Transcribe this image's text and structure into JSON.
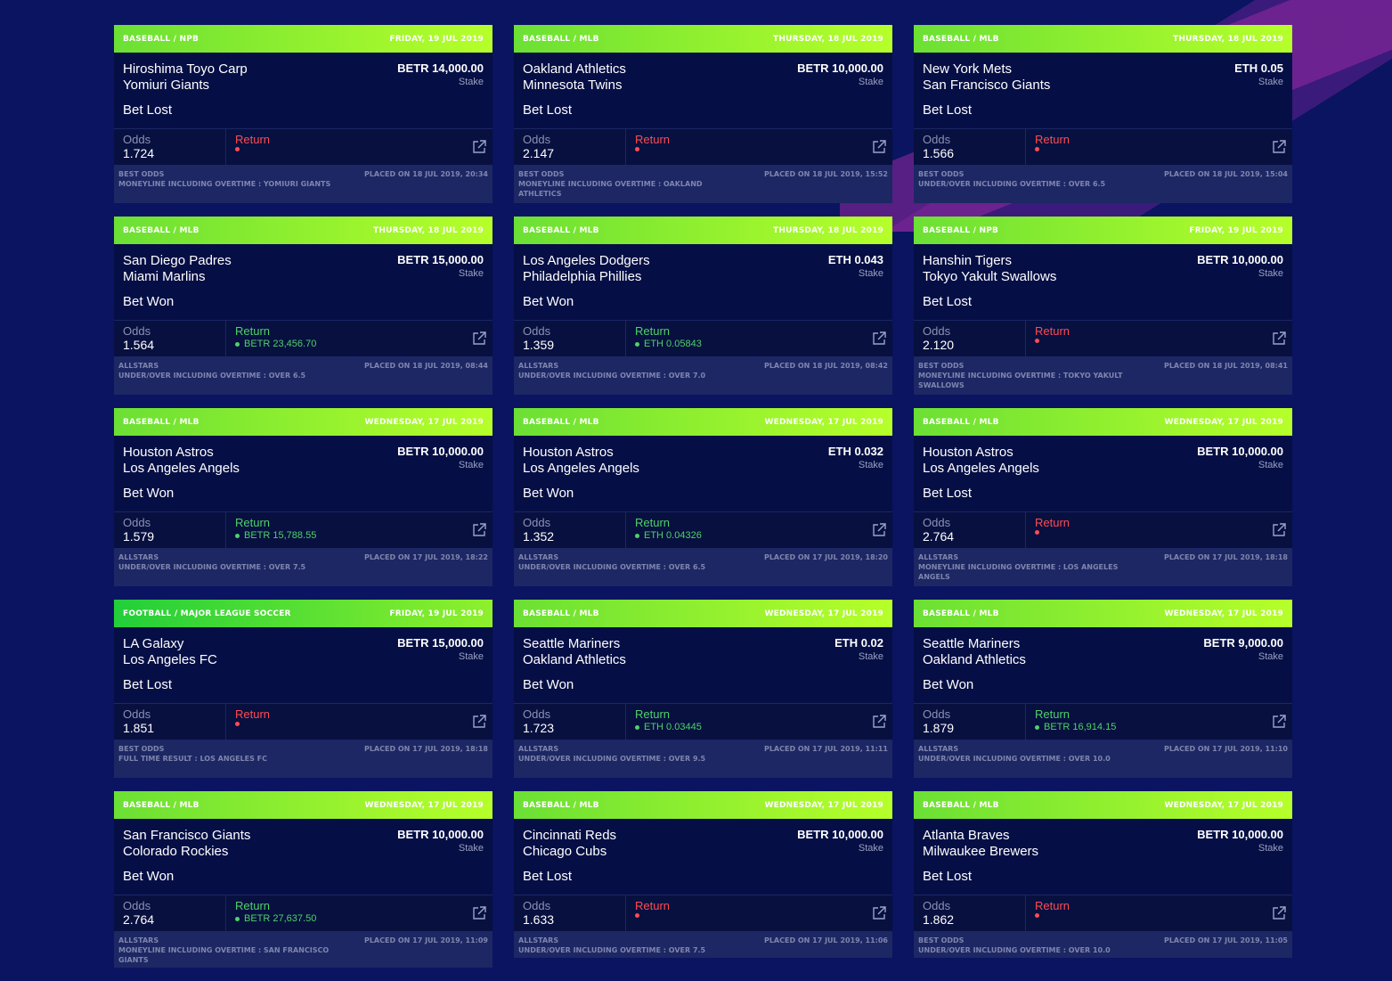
{
  "ui": {
    "odds_label": "Odds",
    "return_label": "Return",
    "stake_label": "Stake"
  },
  "bets": [
    {
      "category": "Baseball / NPB",
      "date": "Friday, 19 Jul 2019",
      "team1": "Hiroshima Toyo Carp",
      "team2": "Yomiuri Giants",
      "result": "Bet Lost",
      "status": "lost",
      "stake": "BETR 14,000.00",
      "odds": "1.724",
      "return_value": "",
      "pick_type": "Best Odds",
      "market": "Moneyline including overtime : Yomiuri Giants",
      "placed": "Placed on 18 Jul 2019, 20:34"
    },
    {
      "category": "Baseball / MLB",
      "date": "Thursday, 18 Jul 2019",
      "team1": "Oakland Athletics",
      "team2": "Minnesota Twins",
      "result": "Bet Lost",
      "status": "lost",
      "stake": "BETR 10,000.00",
      "odds": "2.147",
      "return_value": "",
      "pick_type": "Best Odds",
      "market": "Moneyline including overtime : Oakland Athletics",
      "placed": "Placed on 18 Jul 2019, 15:52"
    },
    {
      "category": "Baseball / MLB",
      "date": "Thursday, 18 Jul 2019",
      "team1": "New York Mets",
      "team2": "San Francisco Giants",
      "result": "Bet Lost",
      "status": "lost",
      "stake": "ETH 0.05",
      "odds": "1.566",
      "return_value": "",
      "pick_type": "Best Odds",
      "market": "Under/Over including overtime : Over 6.5",
      "placed": "Placed on 18 Jul 2019, 15:04"
    },
    {
      "category": "Baseball / MLB",
      "date": "Thursday, 18 Jul 2019",
      "team1": "San Diego Padres",
      "team2": "Miami Marlins",
      "result": "Bet Won",
      "status": "won",
      "stake": "BETR 15,000.00",
      "odds": "1.564",
      "return_value": "BETR 23,456.70",
      "pick_type": "Allstars",
      "market": "Under/Over including overtime : Over 6.5",
      "placed": "Placed on 18 Jul 2019, 08:44"
    },
    {
      "category": "Baseball / MLB",
      "date": "Thursday, 18 Jul 2019",
      "team1": "Los Angeles Dodgers",
      "team2": "Philadelphia Phillies",
      "result": "Bet Won",
      "status": "won",
      "stake": "ETH 0.043",
      "odds": "1.359",
      "return_value": "ETH 0.05843",
      "pick_type": "Allstars",
      "market": "Under/Over including overtime : Over 7.0",
      "placed": "Placed on 18 Jul 2019, 08:42"
    },
    {
      "category": "Baseball / NPB",
      "date": "Friday, 19 Jul 2019",
      "team1": "Hanshin Tigers",
      "team2": "Tokyo Yakult Swallows",
      "result": "Bet Lost",
      "status": "lost",
      "stake": "BETR 10,000.00",
      "odds": "2.120",
      "return_value": "",
      "pick_type": "Best Odds",
      "market": "Moneyline including overtime : Tokyo Yakult Swallows",
      "placed": "Placed on 18 Jul 2019, 08:41"
    },
    {
      "category": "Baseball / MLB",
      "date": "Wednesday, 17 Jul 2019",
      "team1": "Houston Astros",
      "team2": "Los Angeles Angels",
      "result": "Bet Won",
      "status": "won",
      "stake": "BETR 10,000.00",
      "odds": "1.579",
      "return_value": "BETR 15,788.55",
      "pick_type": "Allstars",
      "market": "Under/Over including overtime : Over 7.5",
      "placed": "Placed on 17 Jul 2019, 18:22"
    },
    {
      "category": "Baseball / MLB",
      "date": "Wednesday, 17 Jul 2019",
      "team1": "Houston Astros",
      "team2": "Los Angeles Angels",
      "result": "Bet Won",
      "status": "won",
      "stake": "ETH 0.032",
      "odds": "1.352",
      "return_value": "ETH 0.04326",
      "pick_type": "Allstars",
      "market": "Under/Over including overtime : Over 6.5",
      "placed": "Placed on 17 Jul 2019, 18:20"
    },
    {
      "category": "Baseball / MLB",
      "date": "Wednesday, 17 Jul 2019",
      "team1": "Houston Astros",
      "team2": "Los Angeles Angels",
      "result": "Bet Lost",
      "status": "lost",
      "stake": "BETR 10,000.00",
      "odds": "2.764",
      "return_value": "",
      "pick_type": "Allstars",
      "market": "Moneyline including overtime : Los Angeles Angels",
      "placed": "Placed on 17 Jul 2019, 18:18"
    },
    {
      "category": "Football / Major League Soccer",
      "date": "Friday, 19 Jul 2019",
      "team1": "LA Galaxy",
      "team2": "Los Angeles FC",
      "result": "Bet Lost",
      "status": "lost",
      "stake": "BETR 15,000.00",
      "odds": "1.851",
      "return_value": "",
      "pick_type": "Best Odds",
      "market": "Full Time Result : Los Angeles FC",
      "placed": "Placed on 17 Jul 2019, 18:18"
    },
    {
      "category": "Baseball / MLB",
      "date": "Wednesday, 17 Jul 2019",
      "team1": "Seattle Mariners",
      "team2": "Oakland Athletics",
      "result": "Bet Won",
      "status": "won",
      "stake": "ETH 0.02",
      "odds": "1.723",
      "return_value": "ETH 0.03445",
      "pick_type": "Allstars",
      "market": "Under/Over including overtime : Over 9.5",
      "placed": "Placed on 17 Jul 2019, 11:11"
    },
    {
      "category": "Baseball / MLB",
      "date": "Wednesday, 17 Jul 2019",
      "team1": "Seattle Mariners",
      "team2": "Oakland Athletics",
      "result": "Bet Won",
      "status": "won",
      "stake": "BETR 9,000.00",
      "odds": "1.879",
      "return_value": "BETR 16,914.15",
      "pick_type": "Allstars",
      "market": "Under/Over including overtime : Over 10.0",
      "placed": "Placed on 17 Jul 2019, 11:10"
    },
    {
      "category": "Baseball / MLB",
      "date": "Wednesday, 17 Jul 2019",
      "team1": "San Francisco Giants",
      "team2": "Colorado Rockies",
      "result": "Bet Won",
      "status": "won",
      "stake": "BETR 10,000.00",
      "odds": "2.764",
      "return_value": "BETR 27,637.50",
      "pick_type": "Allstars",
      "market": "Moneyline including overtime : San Francisco Giants",
      "placed": "Placed on 17 Jul 2019, 11:09"
    },
    {
      "category": "Baseball / MLB",
      "date": "Wednesday, 17 Jul 2019",
      "team1": "Cincinnati Reds",
      "team2": "Chicago Cubs",
      "result": "Bet Lost",
      "status": "lost",
      "stake": "BETR 10,000.00",
      "odds": "1.633",
      "return_value": "",
      "pick_type": "Allstars",
      "market": "Under/Over including overtime : Over 7.5",
      "placed": "Placed on 17 Jul 2019, 11:06"
    },
    {
      "category": "Baseball / MLB",
      "date": "Wednesday, 17 Jul 2019",
      "team1": "Atlanta Braves",
      "team2": "Milwaukee Brewers",
      "result": "Bet Lost",
      "status": "lost",
      "stake": "BETR 10,000.00",
      "odds": "1.862",
      "return_value": "",
      "pick_type": "Best Odds",
      "market": "Under/Over including overtime : Over 10.0",
      "placed": "Placed on 17 Jul 2019, 11:05"
    }
  ]
}
